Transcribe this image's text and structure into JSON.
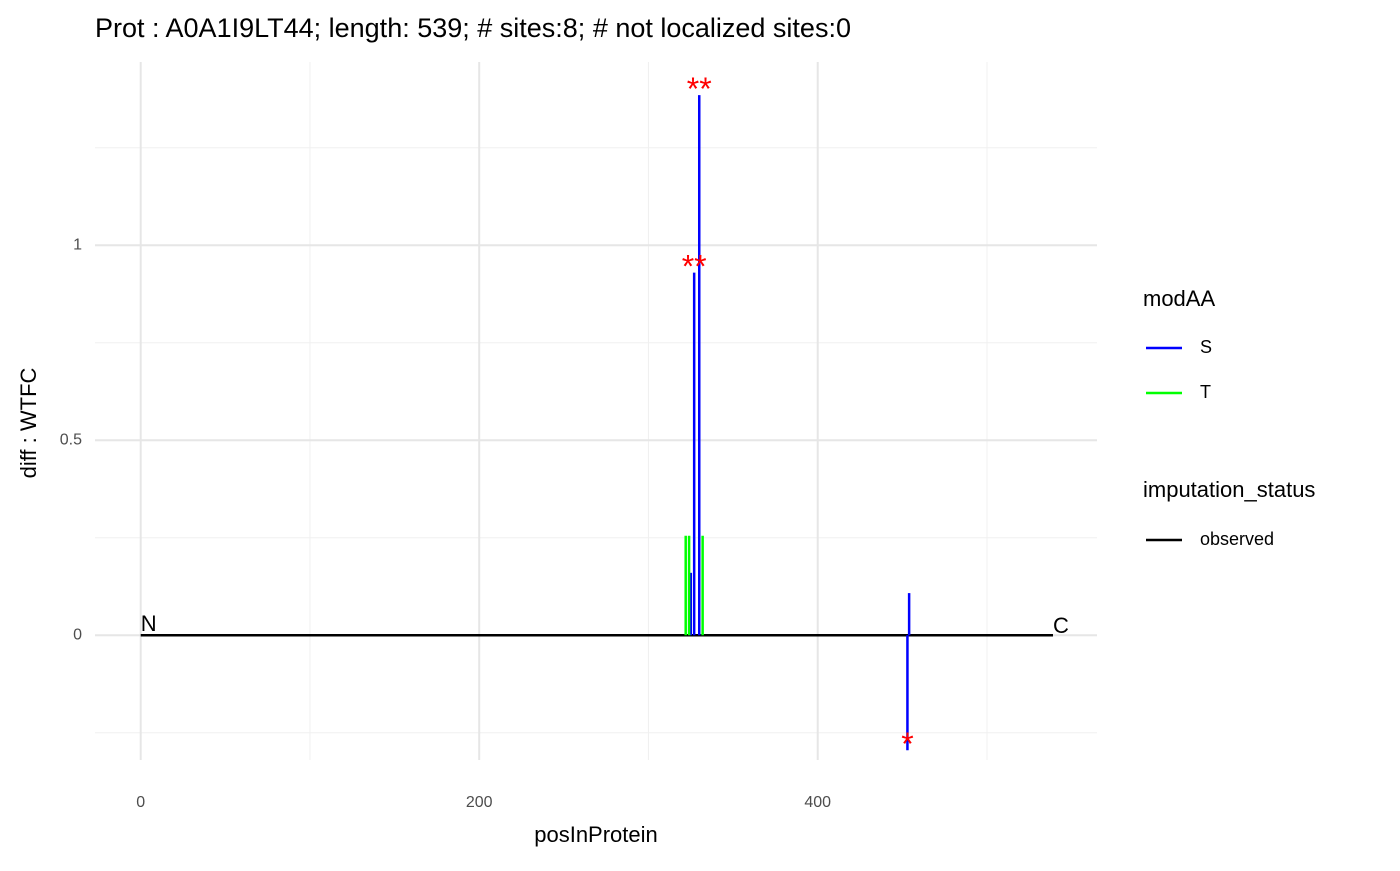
{
  "chart_data": {
    "type": "lollipop",
    "title": "Prot : A0A1I9LT44; length: 539; # sites:8; # not localized sites:0",
    "x_label": "posInProtein",
    "y_label": "diff : WTFC",
    "xlim": [
      -27,
      565
    ],
    "ylim": [
      -0.32,
      1.47
    ],
    "xticks": [
      0,
      200,
      400
    ],
    "yticks": [
      0.0,
      0.5,
      1.0
    ],
    "x_minor_ticks": [
      100,
      300,
      500
    ],
    "y_minor_ticks": [
      -0.25,
      0.25,
      0.75,
      1.25
    ],
    "grid": true,
    "protein_length": 539,
    "n_terminus_label": "N",
    "c_terminus_label": "C",
    "backbone_color": "#000000",
    "series": [
      {
        "name": "S",
        "color": "#0000ff",
        "x": [
          325,
          327,
          330,
          453,
          454
        ],
        "values": [
          0.16,
          0.93,
          1.385,
          -0.295,
          0.108
        ]
      },
      {
        "name": "T",
        "color": "#00ff00",
        "x": [
          322,
          324,
          332
        ],
        "values": [
          0.255,
          0.255,
          0.255
        ]
      }
    ],
    "legend_title": "modAA",
    "legend2_title": "imputation_status",
    "legend2_items": [
      {
        "name": "observed",
        "color": "#000000"
      }
    ],
    "significance_color": "#ff0000",
    "significance": [
      {
        "x": 330,
        "y": 1.41,
        "label": "**"
      },
      {
        "x": 327,
        "y": 0.955,
        "label": "**"
      },
      {
        "x": 453,
        "y": -0.27,
        "label": "*"
      }
    ]
  }
}
